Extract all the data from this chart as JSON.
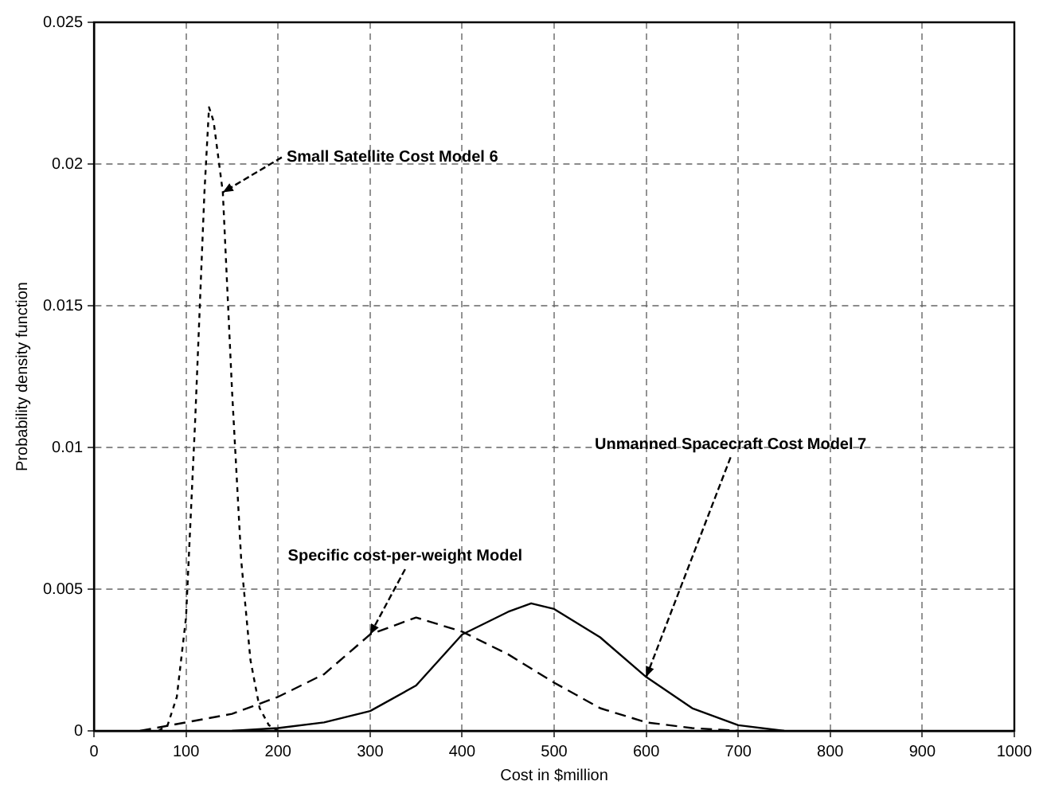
{
  "chart_data": {
    "type": "line",
    "xlabel": "Cost in $million",
    "ylabel": "Probability density function",
    "xlim": [
      0,
      1000
    ],
    "xticks": [
      0,
      100,
      200,
      300,
      400,
      500,
      600,
      700,
      800,
      900,
      1000
    ],
    "ylim": [
      0,
      0.025
    ],
    "yticks": [
      0,
      0.005,
      0.01,
      0.015,
      0.02,
      0.025
    ],
    "grid": true,
    "marker": "none",
    "series": [
      {
        "color": "#000000",
        "line_style": "dotted",
        "x": [
          70,
          80,
          90,
          100,
          110,
          120,
          125,
          130,
          140,
          150,
          160,
          170,
          180,
          190,
          200
        ],
        "values": [
          0,
          0.0002,
          0.0012,
          0.004,
          0.011,
          0.019,
          0.022,
          0.0215,
          0.019,
          0.012,
          0.006,
          0.0025,
          0.0008,
          0.0002,
          0
        ]
      },
      {
        "color": "#000000",
        "line_style": "dashed",
        "x": [
          50,
          100,
          150,
          200,
          250,
          300,
          350,
          400,
          450,
          500,
          550,
          600,
          650,
          700
        ],
        "values": [
          0,
          0.0003,
          0.0006,
          0.0012,
          0.002,
          0.0034,
          0.004,
          0.0035,
          0.0027,
          0.0017,
          0.0008,
          0.0003,
          0.0001,
          0
        ]
      },
      {
        "color": "#000000",
        "line_style": "solid",
        "x": [
          150,
          200,
          250,
          300,
          350,
          400,
          450,
          475,
          500,
          550,
          600,
          650,
          700,
          750
        ],
        "values": [
          0,
          0.0001,
          0.0003,
          0.0007,
          0.0016,
          0.0034,
          0.0042,
          0.0045,
          0.0043,
          0.0033,
          0.0019,
          0.0008,
          0.0002,
          0
        ]
      }
    ],
    "annotations": [
      {
        "text": "Small Satellite Cost Model 6",
        "x": 140,
        "y": 0.019
      },
      {
        "text": "Specific cost-per-weight Model",
        "x": 300,
        "y": 0.0034
      },
      {
        "text": "Unmanned Spacecraft Cost Model 7",
        "x": 600,
        "y": 0.0019
      }
    ]
  }
}
